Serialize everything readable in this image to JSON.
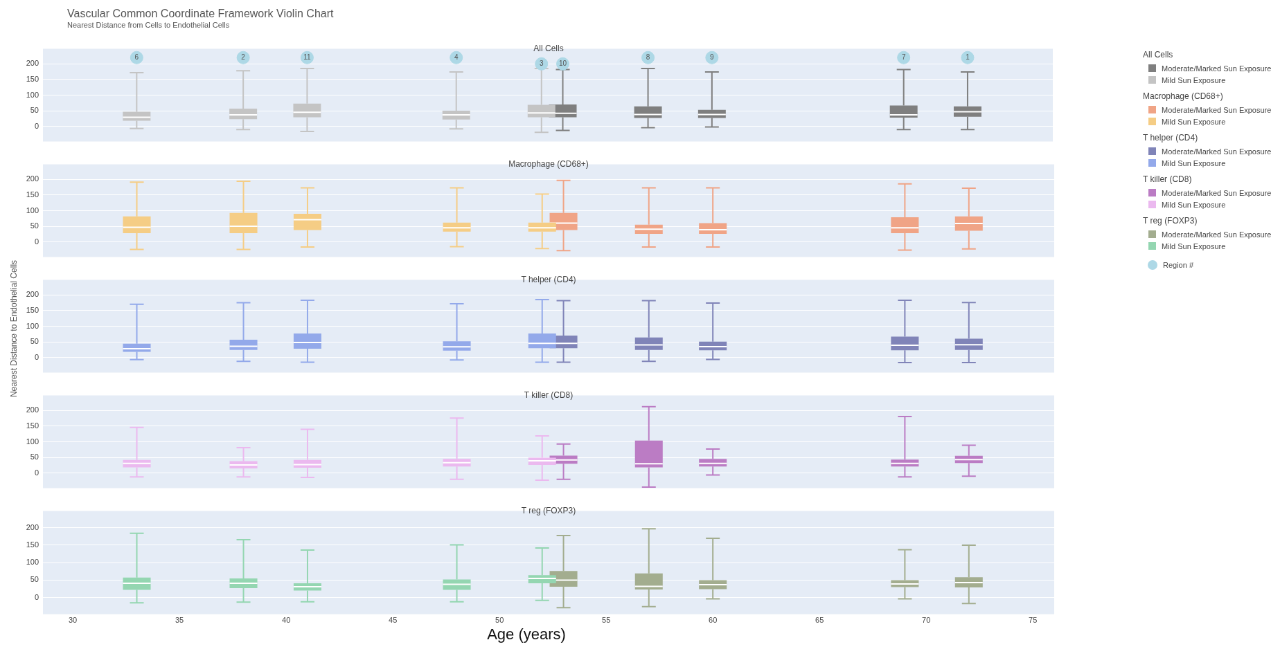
{
  "chart_data": [
    {
      "type": "box",
      "title": "Vascular Common Coordinate Framework Violin Chart",
      "subtitle": "Nearest Distance from Cells to Endothelial Cells",
      "annotations": [
        "All Cells",
        {
          "text": "6",
          "x": 33,
          "y": 220
        },
        {
          "text": "2",
          "x": 38,
          "y": 220
        },
        {
          "text": "11",
          "x": 41,
          "y": 220
        },
        {
          "text": "4",
          "x": 48,
          "y": 220
        },
        {
          "text": "3",
          "x": 52,
          "y": 200
        },
        {
          "text": "10",
          "x": 53,
          "y": 200
        },
        {
          "text": "8",
          "x": 57,
          "y": 220
        },
        {
          "text": "9",
          "x": 60,
          "y": 220
        },
        {
          "text": "7",
          "x": 69,
          "y": 220
        },
        {
          "text": "1",
          "x": 72,
          "y": 220
        }
      ],
      "legend_title": "All Cells",
      "legend": "right",
      "grid": "y",
      "tick_labels": "y",
      "xlim": [
        28.6,
        76
      ],
      "xticks": [
        30,
        35,
        40,
        45,
        50,
        55,
        60,
        65,
        70,
        75
      ],
      "ylim": [
        -48,
        248
      ],
      "yticks": [
        0,
        50,
        100,
        150,
        200
      ],
      "series": [
        {
          "name": "Moderate/Marked Sun Exposure",
          "color": "#7f7f7f",
          "x": [
            53,
            57,
            60,
            69,
            72
          ],
          "boxes": [
            {
              "low": -13,
              "q1": 29,
              "median": 42,
              "q3": 70,
              "high": 182
            },
            {
              "low": -4,
              "q1": 27,
              "median": 38,
              "q3": 64,
              "high": 185
            },
            {
              "low": -2,
              "q1": 27,
              "median": 38,
              "q3": 53,
              "high": 174
            },
            {
              "low": -10,
              "q1": 28,
              "median": 37,
              "q3": 67,
              "high": 182
            },
            {
              "low": -10,
              "q1": 31,
              "median": 47,
              "q3": 64,
              "high": 174
            }
          ]
        },
        {
          "name": "Mild Sun Exposure",
          "color": "#c4c4c4",
          "x": [
            33,
            38,
            41,
            48,
            52
          ],
          "boxes": [
            {
              "low": -7,
              "q1": 18,
              "median": 29,
              "q3": 47,
              "high": 172
            },
            {
              "low": -10,
              "q1": 23,
              "median": 37,
              "q3": 57,
              "high": 178
            },
            {
              "low": -16,
              "q1": 29,
              "median": 45,
              "q3": 73,
              "high": 185
            },
            {
              "low": -8,
              "q1": 22,
              "median": 37,
              "q3": 50,
              "high": 174
            },
            {
              "low": -19,
              "q1": 29,
              "median": 43,
              "q3": 69,
              "high": 185
            }
          ]
        },
        {
          "name": "Region #",
          "type": "scatter",
          "marker": "circle",
          "color": "#add8e6",
          "x": [
            33,
            38,
            41,
            48,
            52,
            53,
            57,
            60,
            69,
            72
          ],
          "values": [
            220,
            220,
            220,
            220,
            200,
            200,
            220,
            220,
            220,
            220
          ]
        }
      ]
    },
    {
      "type": "box",
      "annotations": [
        "Macrophage (CD68+)"
      ],
      "legend_title": "Macrophage (CD68+)",
      "legend": "right",
      "grid": "y",
      "tick_labels": "y",
      "xlim": [
        28.6,
        76
      ],
      "xticks": [
        30,
        35,
        40,
        45,
        50,
        55,
        60,
        65,
        70,
        75
      ],
      "ylim": [
        -48,
        248
      ],
      "yticks": [
        0,
        50,
        100,
        150,
        200
      ],
      "series": [
        {
          "name": "Moderate/Marked Sun Exposure",
          "color": "#f0a486",
          "x": [
            53,
            57,
            60,
            69,
            72
          ],
          "boxes": [
            {
              "low": -28,
              "q1": 38,
              "median": 60,
              "q3": 93,
              "high": 197
            },
            {
              "low": -16,
              "q1": 26,
              "median": 41,
              "q3": 55,
              "high": 173
            },
            {
              "low": -16,
              "q1": 26,
              "median": 39,
              "q3": 60,
              "high": 173
            },
            {
              "low": -26,
              "q1": 28,
              "median": 45,
              "q3": 79,
              "high": 186
            },
            {
              "low": -22,
              "q1": 36,
              "median": 59,
              "q3": 82,
              "high": 172
            }
          ]
        },
        {
          "name": "Mild Sun Exposure",
          "color": "#f5cd85",
          "x": [
            33,
            38,
            41,
            48,
            52
          ],
          "boxes": [
            {
              "low": -24,
              "q1": 28,
              "median": 47,
              "q3": 82,
              "high": 191
            },
            {
              "low": -24,
              "q1": 28,
              "median": 50,
              "q3": 93,
              "high": 194
            },
            {
              "low": -16,
              "q1": 38,
              "median": 71,
              "q3": 90,
              "high": 173
            },
            {
              "low": -15,
              "q1": 33,
              "median": 45,
              "q3": 62,
              "high": 173
            },
            {
              "low": -21,
              "q1": 33,
              "median": 45,
              "q3": 62,
              "high": 153
            }
          ]
        }
      ]
    },
    {
      "type": "box",
      "annotations": [
        "T helper (CD4)"
      ],
      "ylabel": "Nearest Distance to Endothelial Cells",
      "legend_title": "T helper (CD4)",
      "legend": "right",
      "grid": "y",
      "tick_labels": "y",
      "xlim": [
        28.6,
        76
      ],
      "xticks": [
        30,
        35,
        40,
        45,
        50,
        55,
        60,
        65,
        70,
        75
      ],
      "ylim": [
        -48,
        248
      ],
      "yticks": [
        0,
        50,
        100,
        150,
        200
      ],
      "series": [
        {
          "name": "Moderate/Marked Sun Exposure",
          "color": "#8084b8",
          "x": [
            53,
            57,
            60,
            69,
            72
          ],
          "boxes": [
            {
              "low": -15,
              "q1": 30,
              "median": 45,
              "q3": 70,
              "high": 182
            },
            {
              "low": -12,
              "q1": 24,
              "median": 40,
              "q3": 64,
              "high": 182
            },
            {
              "low": -6,
              "q1": 23,
              "median": 35,
              "q3": 51,
              "high": 174
            },
            {
              "low": -16,
              "q1": 23,
              "median": 39,
              "q3": 67,
              "high": 183
            },
            {
              "low": -16,
              "q1": 24,
              "median": 41,
              "q3": 60,
              "high": 176
            }
          ]
        },
        {
          "name": "Mild Sun Exposure",
          "color": "#93a9ea",
          "x": [
            33,
            38,
            41,
            48,
            52
          ],
          "boxes": [
            {
              "low": -7,
              "q1": 18,
              "median": 28,
              "q3": 44,
              "high": 170
            },
            {
              "low": -12,
              "q1": 24,
              "median": 36,
              "q3": 57,
              "high": 175
            },
            {
              "low": -15,
              "q1": 28,
              "median": 48,
              "q3": 77,
              "high": 183
            },
            {
              "low": -8,
              "q1": 22,
              "median": 34,
              "q3": 52,
              "high": 172
            },
            {
              "low": -15,
              "q1": 30,
              "median": 45,
              "q3": 77,
              "high": 185
            }
          ]
        }
      ]
    },
    {
      "type": "box",
      "annotations": [
        "T killer (CD8)"
      ],
      "legend_title": "T killer (CD8)",
      "legend": "right",
      "grid": "y",
      "tick_labels": "y",
      "xlim": [
        28.6,
        76
      ],
      "xticks": [
        30,
        35,
        40,
        45,
        50,
        55,
        60,
        65,
        70,
        75
      ],
      "ylim": [
        -48,
        248
      ],
      "yticks": [
        0,
        50,
        100,
        150,
        200
      ],
      "series": [
        {
          "name": "Moderate/Marked Sun Exposure",
          "color": "#bb7cc4",
          "x": [
            53,
            57,
            60,
            69,
            72
          ],
          "boxes": [
            {
              "low": -20,
              "q1": 30,
              "median": 42,
              "q3": 56,
              "high": 93
            },
            {
              "low": -45,
              "q1": 18,
              "median": 30,
              "q3": 104,
              "high": 212
            },
            {
              "low": -6,
              "q1": 21,
              "median": 31,
              "q3": 45,
              "high": 77
            },
            {
              "low": -12,
              "q1": 21,
              "median": 31,
              "q3": 43,
              "high": 181
            },
            {
              "low": -10,
              "q1": 32,
              "median": 43,
              "q3": 55,
              "high": 89
            }
          ]
        },
        {
          "name": "Mild Sun Exposure",
          "color": "#ebb9ef",
          "x": [
            33,
            38,
            41,
            48,
            52
          ],
          "boxes": [
            {
              "low": -12,
              "q1": 18,
              "median": 31,
              "q3": 42,
              "high": 146
            },
            {
              "low": -12,
              "q1": 15,
              "median": 26,
              "q3": 38,
              "high": 81
            },
            {
              "low": -14,
              "q1": 17,
              "median": 27,
              "q3": 42,
              "high": 140
            },
            {
              "low": -20,
              "q1": 21,
              "median": 33,
              "q3": 45,
              "high": 176
            },
            {
              "low": -23,
              "q1": 26,
              "median": 39,
              "q3": 49,
              "high": 119
            }
          ]
        }
      ]
    },
    {
      "type": "box",
      "annotations": [
        "T reg (FOXP3)"
      ],
      "xlabel": "Age (years)",
      "legend_title": "T reg (FOXP3)",
      "legend": "right",
      "grid": "y",
      "xlim": [
        28.6,
        76
      ],
      "xticks": [
        30,
        35,
        40,
        45,
        50,
        55,
        60,
        65,
        70,
        75
      ],
      "ylim": [
        -48,
        248
      ],
      "yticks": [
        0,
        50,
        100,
        150,
        200
      ],
      "series": [
        {
          "name": "Moderate/Marked Sun Exposure",
          "color": "#a3ad8f",
          "x": [
            53,
            57,
            60,
            69,
            72
          ],
          "boxes": [
            {
              "low": -29,
              "q1": 31,
              "median": 50,
              "q3": 76,
              "high": 178
            },
            {
              "low": -26,
              "q1": 23,
              "median": 32,
              "q3": 69,
              "high": 197
            },
            {
              "low": -4,
              "q1": 24,
              "median": 37,
              "q3": 50,
              "high": 170
            },
            {
              "low": -4,
              "q1": 30,
              "median": 39,
              "q3": 50,
              "high": 137
            },
            {
              "low": -17,
              "q1": 29,
              "median": 43,
              "q3": 58,
              "high": 150
            }
          ]
        },
        {
          "name": "Mild Sun Exposure",
          "color": "#94d6b1",
          "x": [
            33,
            38,
            41,
            48,
            52
          ],
          "boxes": [
            {
              "low": -15,
              "q1": 22,
              "median": 41,
              "q3": 57,
              "high": 184
            },
            {
              "low": -13,
              "q1": 27,
              "median": 41,
              "q3": 55,
              "high": 166
            },
            {
              "low": -12,
              "q1": 20,
              "median": 31,
              "q3": 41,
              "high": 136
            },
            {
              "low": -12,
              "q1": 22,
              "median": 38,
              "q3": 52,
              "high": 151
            },
            {
              "low": -8,
              "q1": 41,
              "median": 55,
              "q3": 64,
              "high": 142
            }
          ]
        }
      ]
    }
  ]
}
